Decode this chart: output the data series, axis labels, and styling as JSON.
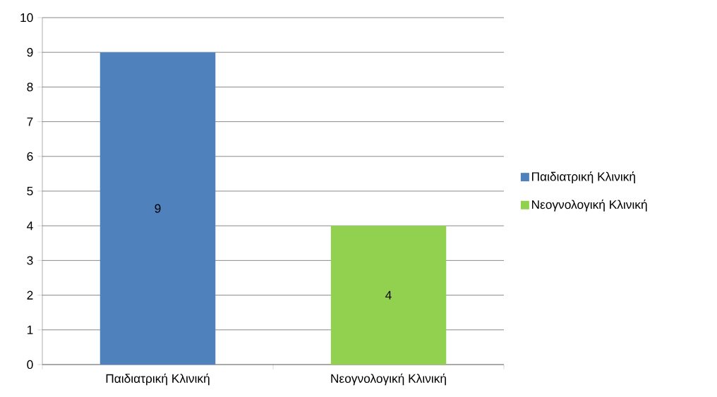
{
  "chart_data": {
    "type": "bar",
    "categories": [
      "Παιδιατρική Κλινική",
      "Νεογνολογική Κλινική"
    ],
    "series": [
      {
        "name": "Παιδιατρική Κλινική",
        "color": "#4f81bd",
        "values": [
          9,
          null
        ]
      },
      {
        "name": "Νεογνολογική Κλινική",
        "color": "#92d050",
        "values": [
          null,
          4
        ]
      }
    ],
    "ylim": [
      0,
      10
    ],
    "yticks": [
      0,
      1,
      2,
      3,
      4,
      5,
      6,
      7,
      8,
      9,
      10
    ],
    "grid": "y",
    "legend": "right",
    "data_labels": true
  }
}
